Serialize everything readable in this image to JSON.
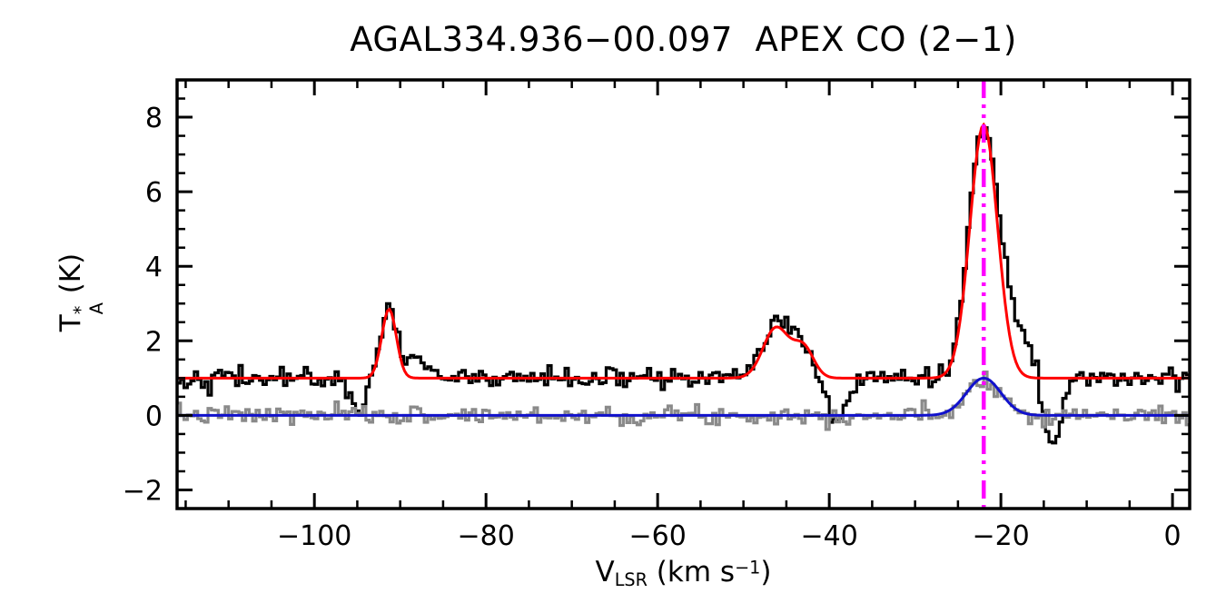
{
  "chart_data": {
    "type": "line",
    "title": "AGAL334.936−00.097  APEX CO (2−1)",
    "title_source_name": "AGAL334.936−00.097",
    "title_line_name": "APEX CO (2−1)",
    "xlabel_parts": {
      "main": "V",
      "sub": "LSR",
      "unit_pre": " (km s",
      "sup": "−1",
      "unit_post": ")"
    },
    "ylabel_parts": {
      "main": "T",
      "sup": "*",
      "sub": "A",
      "unit": " (K)"
    },
    "xlim": [
      -116,
      2
    ],
    "ylim": [
      -2.5,
      9.0
    ],
    "xticks": [
      -100,
      -80,
      -60,
      -40,
      -20,
      0
    ],
    "xtick_labels": [
      "−100",
      "−80",
      "−60",
      "−40",
      "−20",
      "0"
    ],
    "xminor_step": 5,
    "yticks": [
      -2,
      0,
      2,
      4,
      6,
      8
    ],
    "ytick_labels": [
      "−2",
      "0",
      "2",
      "4",
      "6",
      "8"
    ],
    "yminor_step": 0.5,
    "grid": false,
    "legend": "none",
    "axis_color": "#000000",
    "channel_width_kms": 0.4,
    "series": [
      {
        "name": "observed-co21-spectrum",
        "style": "histogram",
        "color": "#000000",
        "baseline": 1.0,
        "noise_rms": 0.14,
        "noise_seed": 42,
        "components": [
          {
            "center": -91.3,
            "amp": 1.9,
            "sigma": 0.9
          },
          {
            "center": -87.5,
            "amp": 0.45,
            "sigma": 1.5
          },
          {
            "center": -46.2,
            "amp": 1.4,
            "sigma": 1.6
          },
          {
            "center": -43.0,
            "amp": 0.9,
            "sigma": 1.3
          },
          {
            "center": -22.0,
            "amp": 6.8,
            "sigma": 1.7
          },
          {
            "center": -18.3,
            "amp": 1.3,
            "sigma": 1.6
          },
          {
            "center": -94.9,
            "amp": -0.85,
            "sigma": 0.8
          },
          {
            "center": -39.2,
            "amp": -1.15,
            "sigma": 1.3
          },
          {
            "center": -13.9,
            "amp": -1.8,
            "sigma": 1.0
          }
        ]
      },
      {
        "name": "gaussian-model-fit",
        "style": "curve",
        "color": "#ff0000",
        "baseline": 1.0,
        "noise_rms": 0,
        "components": [
          {
            "center": -91.3,
            "amp": 1.85,
            "sigma": 0.85
          },
          {
            "center": -46.2,
            "amp": 1.35,
            "sigma": 1.5
          },
          {
            "center": -43.0,
            "amp": 0.8,
            "sigma": 1.2
          },
          {
            "center": -22.0,
            "amp": 6.8,
            "sigma": 1.6
          }
        ]
      },
      {
        "name": "secondary-spectrum",
        "style": "histogram",
        "color": "#8a8a8a",
        "baseline": 0.0,
        "noise_rms": 0.12,
        "noise_seed": 7,
        "components": [
          {
            "center": -22.0,
            "amp": 1.0,
            "sigma": 2.0
          }
        ]
      },
      {
        "name": "secondary-gaussian-fit",
        "style": "curve",
        "color": "#1111cc",
        "baseline": 0.0,
        "noise_rms": 0,
        "components": [
          {
            "center": -22.0,
            "amp": 1.0,
            "sigma": 2.0
          }
        ]
      }
    ],
    "vline": {
      "x": -22.0,
      "color": "#ff00ff",
      "style": "dash-dot-dot"
    },
    "peaks_readout": [
      {
        "v_lsr": -91.3,
        "T_A": 3.0
      },
      {
        "v_lsr": -46.2,
        "T_A": 2.4
      },
      {
        "v_lsr": -43.0,
        "T_A": 1.9
      },
      {
        "v_lsr": -22.0,
        "T_A": 7.8
      }
    ],
    "absorption_dips_readout": [
      {
        "v_lsr": -94.9,
        "T_A": 0.15
      },
      {
        "v_lsr": -39.2,
        "T_A": -0.15
      },
      {
        "v_lsr": -13.9,
        "T_A": -0.8
      }
    ]
  }
}
